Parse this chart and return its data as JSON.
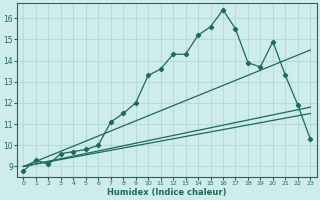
{
  "title": "",
  "xlabel": "Humidex (Indice chaleur)",
  "ylabel": "",
  "bg_color": "#ceecea",
  "line_color": "#1a6b5a",
  "grid_color": "#aed8d4",
  "xlim": [
    -0.5,
    23.5
  ],
  "ylim": [
    8.5,
    16.7
  ],
  "yticks": [
    9,
    10,
    11,
    12,
    13,
    14,
    15,
    16
  ],
  "xticks": [
    0,
    1,
    2,
    3,
    4,
    5,
    6,
    7,
    8,
    9,
    10,
    11,
    12,
    13,
    14,
    15,
    16,
    17,
    18,
    19,
    20,
    21,
    22,
    23
  ],
  "line1_x": [
    0,
    1,
    2,
    3,
    4,
    5,
    6,
    7,
    8,
    9,
    10,
    11,
    12,
    13,
    14,
    15,
    16,
    17,
    18,
    19,
    20,
    21,
    22,
    23
  ],
  "line1_y": [
    8.8,
    9.3,
    9.1,
    9.6,
    9.7,
    9.8,
    10.0,
    11.1,
    11.5,
    12.0,
    13.3,
    13.6,
    14.3,
    14.3,
    15.2,
    15.6,
    16.4,
    15.5,
    13.9,
    13.7,
    14.9,
    13.3,
    11.9,
    10.3
  ],
  "line2_x": [
    0,
    23
  ],
  "line2_y": [
    9.0,
    14.5
  ],
  "line3_x": [
    0,
    23
  ],
  "line3_y": [
    9.0,
    11.8
  ],
  "line4_x": [
    0,
    23
  ],
  "line4_y": [
    9.0,
    11.5
  ],
  "marker": "D",
  "markersize": 2.2,
  "linewidth": 0.9
}
